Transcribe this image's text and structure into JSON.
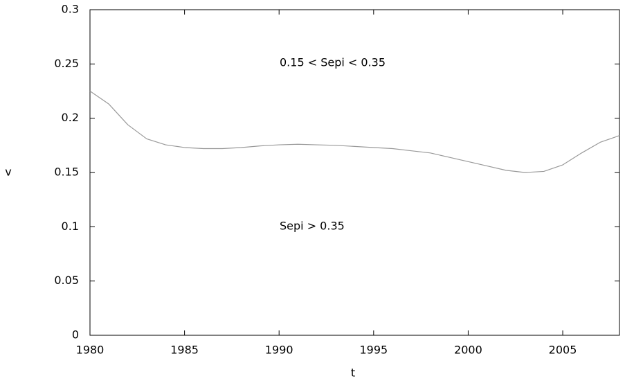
{
  "chart_data": {
    "type": "line",
    "x_label": "t",
    "y_label": "v",
    "annotations": [
      "0.15 < Sepi < 0.35",
      "Sepi > 0.35"
    ],
    "x": [
      1980,
      1981,
      1982,
      1983,
      1984,
      1985,
      1986,
      1987,
      1988,
      1989,
      1990,
      1991,
      1992,
      1993,
      1994,
      1995,
      1996,
      1997,
      1998,
      1999,
      2000,
      2001,
      2002,
      2003,
      2004,
      2005,
      2006,
      2007,
      2008
    ],
    "values": [
      0.225,
      0.213,
      0.194,
      0.181,
      0.1755,
      0.173,
      0.172,
      0.172,
      0.173,
      0.1745,
      0.1755,
      0.176,
      0.1755,
      0.175,
      0.174,
      0.173,
      0.172,
      0.17,
      0.168,
      0.164,
      0.16,
      0.156,
      0.152,
      0.15,
      0.151,
      0.157,
      0.168,
      0.178,
      0.184
    ],
    "color": "#999999",
    "xlim": [
      1980,
      2008
    ],
    "xticks": [
      1980,
      1985,
      1990,
      1995,
      2000,
      2005
    ],
    "ylim": [
      0,
      0.3
    ],
    "yticks": [
      0,
      0.05,
      0.1,
      0.15,
      0.2,
      0.25,
      0.3
    ]
  }
}
